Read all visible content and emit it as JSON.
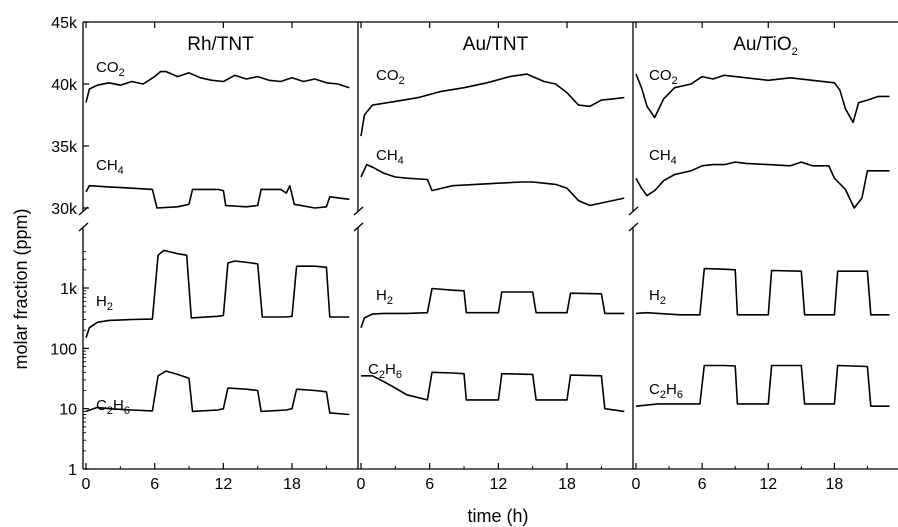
{
  "chart_data": {
    "type": "line",
    "xlabel": "time (h)",
    "ylabel": "molar fraction (ppm)",
    "x_ticks": [
      "0",
      "6",
      "12",
      "18"
    ],
    "y_ticks_upper": [
      "30k",
      "35k",
      "40k",
      "45k"
    ],
    "y_ticks_lower": [
      "1",
      "10",
      "100",
      "1k"
    ],
    "upper_ylim": [
      29000,
      45000
    ],
    "lower_ylim": [
      1,
      5000
    ],
    "lower_scale": "log",
    "xlim": [
      0,
      23.5
    ],
    "grid": false,
    "panels": [
      {
        "title": "Rh/TNT",
        "title_main": "Rh/TNT",
        "title_sub": "",
        "series": [
          {
            "name": "CO2",
            "label_main": "CO",
            "label_sub": "2",
            "axis": "upper",
            "x": [
              0,
              0.3,
              1,
              2,
              3,
              4,
              5,
              6,
              6.5,
              7,
              8,
              9,
              10,
              11,
              12,
              13,
              14,
              15,
              16,
              17,
              18,
              19,
              20,
              21,
              22,
              23
            ],
            "y": [
              38500,
              39600,
              39900,
              40100,
              39900,
              40200,
              40000,
              40600,
              41000,
              41000,
              40600,
              40900,
              40500,
              40300,
              40200,
              40700,
              40400,
              40600,
              40300,
              40200,
              40500,
              40200,
              40400,
              40100,
              40000,
              39700
            ]
          },
          {
            "name": "CH4",
            "label_main": "CH",
            "label_sub": "4",
            "axis": "upper",
            "x": [
              0,
              0.3,
              2,
              4,
              5.8,
              6.2,
              8,
              9,
              9.3,
              11.5,
              12,
              12.2,
              14,
              15,
              15.3,
              17,
              17.5,
              17.8,
              18.2,
              20,
              21,
              21.3,
              23
            ],
            "y": [
              31300,
              31800,
              31700,
              31600,
              31500,
              30000,
              30100,
              30300,
              31500,
              31500,
              31400,
              30200,
              30100,
              30200,
              31500,
              31500,
              31200,
              31800,
              30300,
              30000,
              30100,
              30900,
              30700
            ]
          },
          {
            "name": "H2",
            "label_main": "H",
            "label_sub": "2",
            "axis": "lower",
            "x": [
              0,
              0.3,
              1,
              2,
              4,
              5.8,
              6.3,
              6.8,
              8,
              8.8,
              9.2,
              11.5,
              12,
              12.4,
              13,
              14.5,
              15,
              15.4,
              17.5,
              18,
              18.4,
              20,
              21,
              21.3,
              23
            ],
            "y": [
              150,
              220,
              270,
              290,
              300,
              305,
              3500,
              4200,
              3700,
              3500,
              320,
              340,
              350,
              2600,
              2800,
              2600,
              2500,
              330,
              330,
              340,
              2300,
              2300,
              2200,
              330,
              330
            ]
          },
          {
            "name": "C2H6",
            "label_main": "C",
            "label_sub": "2",
            "label_main2": "H",
            "label_sub2": "6",
            "axis": "lower",
            "x": [
              0,
              1,
              2,
              4,
              5.8,
              6.3,
              7,
              8,
              9,
              9.3,
              11.5,
              12,
              12.4,
              14,
              15,
              15.3,
              17.5,
              18,
              18.4,
              20,
              21,
              21.3,
              23
            ],
            "y": [
              9,
              10.5,
              10,
              9.5,
              9.2,
              35,
              42,
              37,
              32,
              9,
              9.5,
              10,
              22,
              21,
              20,
              9,
              9.5,
              10,
              21,
              20,
              19,
              8.5,
              8
            ]
          }
        ]
      },
      {
        "title": "Au/TNT",
        "title_main": "Au/TNT",
        "title_sub": "",
        "series": [
          {
            "name": "CO2",
            "label_main": "CO",
            "label_sub": "2",
            "axis": "upper",
            "x": [
              0,
              0.3,
              1,
              3,
              5,
              7,
              9,
              11,
              13,
              14.5,
              15,
              16,
              17,
              18,
              19,
              20,
              21,
              22,
              23
            ],
            "y": [
              35800,
              37500,
              38300,
              38600,
              38900,
              39400,
              39700,
              40100,
              40600,
              40800,
              40600,
              40200,
              40000,
              39300,
              38300,
              38200,
              38700,
              38800,
              38900
            ]
          },
          {
            "name": "CH4",
            "label_main": "CH",
            "label_sub": "4",
            "axis": "upper",
            "x": [
              0,
              0.5,
              1,
              2,
              3,
              4,
              5.8,
              6.2,
              8,
              10,
              12,
              14,
              15,
              16,
              17,
              18,
              19,
              20,
              21,
              23
            ],
            "y": [
              32500,
              33500,
              33300,
              32800,
              32500,
              32400,
              32300,
              31400,
              31800,
              31900,
              32000,
              32100,
              32100,
              32000,
              31900,
              31600,
              30600,
              30200,
              30400,
              30800
            ]
          },
          {
            "name": "H2",
            "label_main": "H",
            "label_sub": "2",
            "axis": "lower",
            "x": [
              0,
              0.3,
              1,
              2,
              4,
              5.8,
              6.2,
              8,
              9,
              9.2,
              11.7,
              12,
              12.3,
              15,
              15.3,
              17.7,
              18,
              18.3,
              21,
              21.3,
              23
            ],
            "y": [
              220,
              320,
              370,
              380,
              380,
              390,
              980,
              920,
              900,
              390,
              390,
              390,
              860,
              860,
              390,
              390,
              390,
              820,
              800,
              380,
              380
            ]
          },
          {
            "name": "C2H6",
            "label_main": "C",
            "label_sub": "2",
            "label_main2": "H",
            "label_sub2": "6",
            "axis": "lower",
            "x": [
              0,
              1,
              2,
              3,
              4,
              5.8,
              6.2,
              8,
              9,
              9.2,
              11.7,
              12,
              12.3,
              15,
              15.3,
              17.7,
              18,
              18.3,
              21,
              21.3,
              23
            ],
            "y": [
              35,
              35,
              28,
              22,
              17,
              14,
              40,
              39,
              38,
              14,
              14,
              14,
              38,
              37,
              14,
              14,
              14,
              36,
              35,
              10,
              9
            ]
          }
        ]
      },
      {
        "title": "Au/TiO2",
        "title_main": "Au/TiO",
        "title_sub": "2",
        "series": [
          {
            "name": "CO2",
            "label_main": "CO",
            "label_sub": "2",
            "axis": "upper",
            "x": [
              0,
              0.5,
              1,
              1.7,
              2.5,
              3.5,
              5,
              6,
              7,
              8,
              9,
              10,
              12,
              14,
              16,
              18,
              18.5,
              19,
              19.7,
              20.2,
              21,
              22,
              23
            ],
            "y": [
              40800,
              39700,
              38200,
              37300,
              38800,
              39700,
              40000,
              40600,
              40400,
              40700,
              40600,
              40500,
              40300,
              40500,
              40300,
              40100,
              39500,
              38000,
              36900,
              38500,
              38700,
              39000,
              39000
            ]
          },
          {
            "name": "CH4",
            "label_main": "CH",
            "label_sub": "4",
            "axis": "upper",
            "x": [
              0,
              0.5,
              1,
              1.7,
              2.5,
              3.5,
              5,
              6,
              7,
              8,
              9,
              10,
              12,
              14,
              15,
              16,
              17.5,
              18,
              19,
              19.8,
              20.5,
              21,
              23
            ],
            "y": [
              32400,
              31600,
              31000,
              31400,
              32200,
              32700,
              33000,
              33400,
              33500,
              33500,
              33700,
              33600,
              33500,
              33400,
              33700,
              33400,
              33400,
              32400,
              31500,
              30000,
              30800,
              33000,
              33000
            ]
          },
          {
            "name": "H2",
            "label_main": "H",
            "label_sub": "2",
            "axis": "lower",
            "x": [
              0,
              1,
              2,
              4,
              5.8,
              6.2,
              8,
              9,
              9.2,
              11.7,
              12,
              12.3,
              15,
              15.3,
              17.7,
              18,
              18.3,
              21,
              21.3,
              23
            ],
            "y": [
              380,
              390,
              380,
              360,
              360,
              2100,
              2050,
              2000,
              360,
              360,
              360,
              1950,
              1900,
              360,
              360,
              360,
              1900,
              1900,
              360,
              360
            ]
          },
          {
            "name": "C2H6",
            "label_main": "C",
            "label_sub": "2",
            "label_main2": "H",
            "label_sub2": "6",
            "axis": "lower",
            "x": [
              0,
              2,
              4,
              5.8,
              6.2,
              8,
              9,
              9.2,
              11.7,
              12,
              12.3,
              15,
              15.3,
              17.7,
              18,
              18.3,
              21,
              21.3,
              23
            ],
            "y": [
              11,
              12,
              12,
              12,
              52,
              52,
              51,
              12,
              12,
              12,
              52,
              52,
              12,
              12,
              12,
              52,
              50,
              11,
              11
            ]
          }
        ]
      }
    ]
  }
}
